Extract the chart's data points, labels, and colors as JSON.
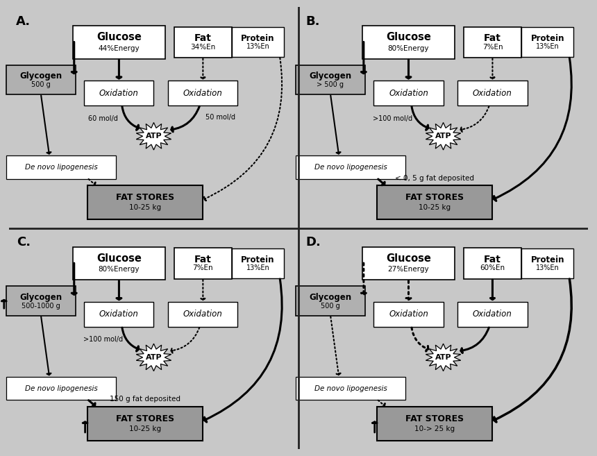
{
  "bg_color": "#c8c8c8",
  "panel_bg": "#e8e8e8",
  "divider_color": "#222222",
  "panels": {
    "A": {
      "label": "A.",
      "glucose_label": "Glucose",
      "glucose_sub": "44%Energy",
      "fat_label": "Fat",
      "fat_sub": "34%En",
      "protein_label": "Protein",
      "protein_sub": "13%En",
      "glycogen_label": "Glycogen",
      "glycogen_sub": "500 g",
      "glycogen_up_arrow": false,
      "atp_label": "ATP",
      "atp_label1": "60 mol/d",
      "atp_label2": "50 mol/d",
      "dnl_label": "De novo lipogenesis",
      "fat_stores_label": "FAT STORES",
      "fat_stores_sub": "10-25 kg",
      "fat_stores_up_arrow": false,
      "deposited_label": "",
      "glu_to_ox_dotted": false,
      "fat_to_ox_dotted": true,
      "ox1_to_atp_dotted": false,
      "ox2_to_atp_dotted": false,
      "dnl_to_fats_dotted": true,
      "right_to_fats_dotted": true,
      "right_to_fats_solid": false,
      "glu_to_glyc_solid": true,
      "glyc_to_dnl_solid": true
    },
    "B": {
      "label": "B.",
      "glucose_label": "Glucose",
      "glucose_sub": "80%Energy",
      "fat_label": "Fat",
      "fat_sub": "7%En",
      "protein_label": "Protein",
      "protein_sub": "13%En",
      "glycogen_label": "Glycogen",
      "glycogen_sub": "> 500 g",
      "glycogen_up_arrow": false,
      "atp_label": "ATP",
      "atp_label1": ">100 mol/d",
      "atp_label2": "",
      "dnl_label": "De novo lipogenesis",
      "fat_stores_label": "FAT STORES",
      "fat_stores_sub": "10-25 kg",
      "fat_stores_up_arrow": false,
      "deposited_label": "< 0, 5 g fat deposited",
      "glu_to_ox_dotted": false,
      "fat_to_ox_dotted": true,
      "ox1_to_atp_dotted": false,
      "ox2_to_atp_dotted": true,
      "dnl_to_fats_dotted": false,
      "right_to_fats_dotted": false,
      "right_to_fats_solid": true,
      "glu_to_glyc_solid": true,
      "glyc_to_dnl_solid": true
    },
    "C": {
      "label": "C.",
      "glucose_label": "Glucose",
      "glucose_sub": "80%Energy",
      "fat_label": "Fat",
      "fat_sub": "7%En",
      "protein_label": "Protein",
      "protein_sub": "13%En",
      "glycogen_label": "Glycogen",
      "glycogen_sub": "500-1000 g",
      "glycogen_up_arrow": true,
      "atp_label": "ATP",
      "atp_label1": ">100 mol/d",
      "atp_label2": "",
      "dnl_label": "De novo lipogenesis",
      "fat_stores_label": "FAT STORES",
      "fat_stores_sub": "10-25 kg",
      "fat_stores_up_arrow": true,
      "deposited_label": "150 g fat deposited",
      "glu_to_ox_dotted": false,
      "fat_to_ox_dotted": true,
      "ox1_to_atp_dotted": false,
      "ox2_to_atp_dotted": true,
      "dnl_to_fats_dotted": false,
      "right_to_fats_dotted": false,
      "right_to_fats_solid": true,
      "glu_to_glyc_solid": true,
      "glyc_to_dnl_solid": true
    },
    "D": {
      "label": "D.",
      "glucose_label": "Glucose",
      "glucose_sub": "27%Energy",
      "fat_label": "Fat",
      "fat_sub": "60%En",
      "protein_label": "Protein",
      "protein_sub": "13%En",
      "glycogen_label": "Glycogen",
      "glycogen_sub": "500 g",
      "glycogen_up_arrow": false,
      "atp_label": "ATP",
      "atp_label1": "",
      "atp_label2": "",
      "dnl_label": "De novo lipogenesis",
      "fat_stores_label": "FAT STORES",
      "fat_stores_sub": "10-> 25 kg",
      "fat_stores_up_arrow": true,
      "deposited_label": "",
      "glu_to_ox_dotted": true,
      "fat_to_ox_dotted": false,
      "ox1_to_atp_dotted": true,
      "ox2_to_atp_dotted": false,
      "dnl_to_fats_dotted": true,
      "right_to_fats_dotted": false,
      "right_to_fats_solid": true,
      "glu_to_glyc_solid": false,
      "glyc_to_dnl_solid": false
    }
  }
}
